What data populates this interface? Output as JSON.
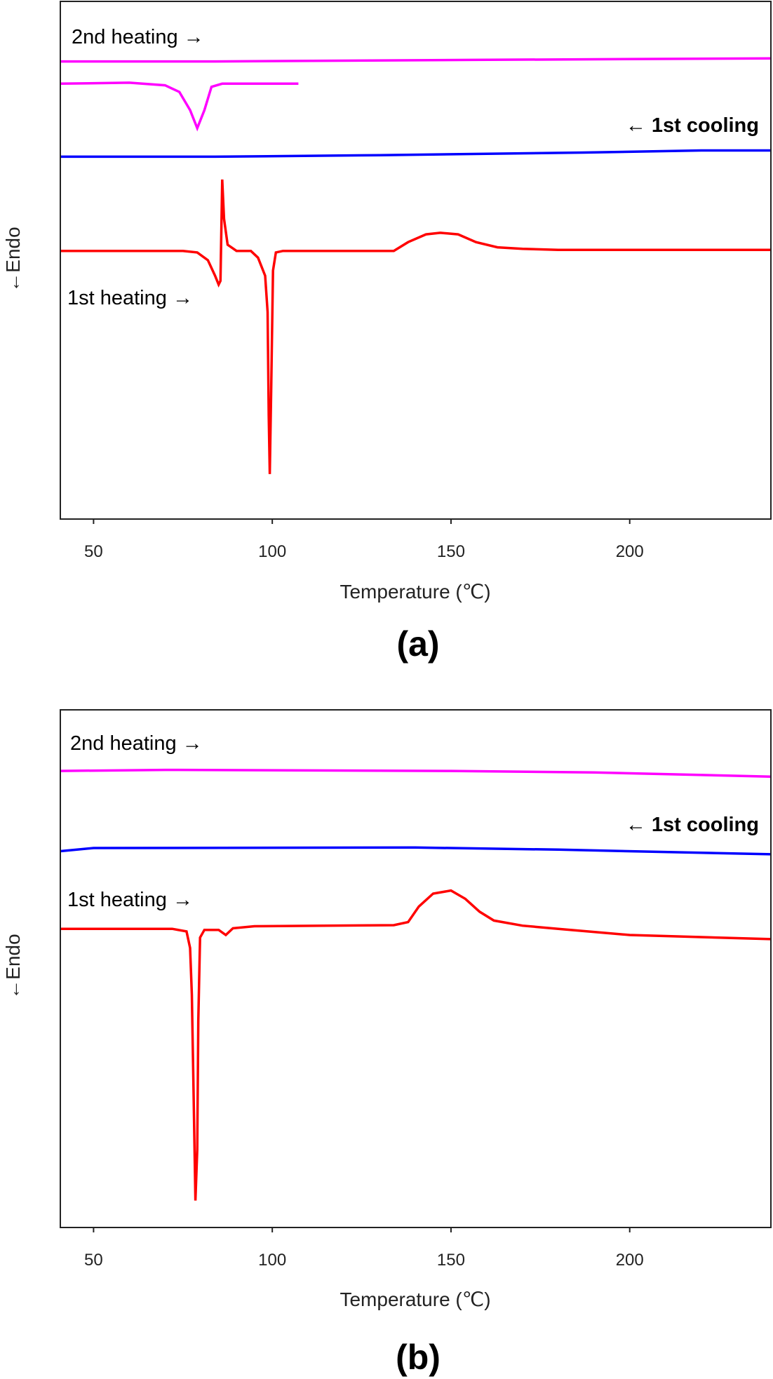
{
  "chart_data": [
    {
      "type": "line",
      "panel_label": "(a)",
      "xlabel": "Temperature (℃)",
      "ylabel": "←Endo",
      "xlim": [
        40.7,
        239.5
      ],
      "ylim": [
        0,
        100
      ],
      "y_units": "arbitrary (no tick labels)",
      "xticks": [
        50,
        100,
        150,
        200
      ],
      "grid": false,
      "annotations": [
        "2nd heating →",
        "← 1st cooling",
        "1st heating →"
      ],
      "series": [
        {
          "name": "2nd heating",
          "color": "#ff00ff",
          "points": [
            [
              40.7,
              88.4
            ],
            [
              84,
              88.4
            ],
            [
              156,
              88.7
            ],
            [
              239.5,
              89.0
            ]
          ]
        },
        {
          "color": "#ff00ff",
          "points": [
            [
              40.7,
              84.1
            ],
            [
              60,
              84.3
            ],
            [
              70,
              83.8
            ],
            [
              74,
              82.5
            ],
            [
              77,
              79
            ],
            [
              79,
              75.5
            ],
            [
              81,
              79
            ],
            [
              83,
              83.5
            ],
            [
              86,
              84.1
            ],
            [
              107.3,
              84.1
            ]
          ]
        },
        {
          "name": "1st cooling",
          "color": "#0000ff",
          "points": [
            [
              40.7,
              70
            ],
            [
              84,
              70
            ],
            [
              130,
              70.3
            ],
            [
              187,
              70.8
            ],
            [
              220,
              71.2
            ],
            [
              239.5,
              71.2
            ]
          ]
        },
        {
          "name": "1st heating",
          "color": "#ff0000",
          "points": [
            [
              40.7,
              51.8
            ],
            [
              75,
              51.8
            ],
            [
              79,
              51.5
            ],
            [
              82,
              50
            ],
            [
              84,
              47
            ],
            [
              85,
              45.3
            ],
            [
              85.5,
              46
            ],
            [
              86,
              65.6
            ],
            [
              86.5,
              58
            ],
            [
              87.5,
              53
            ],
            [
              90,
              51.8
            ],
            [
              94,
              51.8
            ],
            [
              96,
              50.5
            ],
            [
              98,
              47
            ],
            [
              98.7,
              40
            ],
            [
              99,
              20
            ],
            [
              99.3,
              8.7
            ],
            [
              99.7,
              25
            ],
            [
              100.2,
              48
            ],
            [
              101,
              51.5
            ],
            [
              103,
              51.8
            ],
            [
              134,
              51.8
            ],
            [
              138,
              53.5
            ],
            [
              143,
              55
            ],
            [
              147,
              55.3
            ],
            [
              152,
              55
            ],
            [
              157,
              53.5
            ],
            [
              163,
              52.5
            ],
            [
              170,
              52.2
            ],
            [
              180,
              52
            ],
            [
              239.5,
              52
            ]
          ]
        }
      ]
    },
    {
      "type": "line",
      "panel_label": "(b)",
      "xlabel": "Temperature (℃)",
      "ylabel": "←Endo",
      "xlim": [
        40.7,
        239.5
      ],
      "ylim": [
        0,
        100
      ],
      "y_units": "arbitrary (no tick labels)",
      "xticks": [
        50,
        100,
        150,
        200
      ],
      "grid": false,
      "annotations": [
        "2nd heating →",
        "← 1st cooling",
        "1st heating →"
      ],
      "series": [
        {
          "name": "2nd heating",
          "color": "#ff00ff",
          "points": [
            [
              40.7,
              88.2
            ],
            [
              70,
              88.4
            ],
            [
              150,
              88.2
            ],
            [
              190,
              87.9
            ],
            [
              239.5,
              87.1
            ]
          ]
        },
        {
          "name": "1st cooling",
          "color": "#0000ff",
          "points": [
            [
              40.7,
              72.7
            ],
            [
              50,
              73.3
            ],
            [
              140,
              73.4
            ],
            [
              180,
              73.0
            ],
            [
              239.5,
              72.1
            ]
          ]
        },
        {
          "name": "1st heating",
          "color": "#ff0000",
          "points": [
            [
              40.7,
              57.7
            ],
            [
              72,
              57.7
            ],
            [
              76,
              57.2
            ],
            [
              77,
              54
            ],
            [
              77.5,
              45
            ],
            [
              78,
              25
            ],
            [
              78.5,
              5.2
            ],
            [
              79,
              15
            ],
            [
              79.3,
              40
            ],
            [
              79.8,
              56
            ],
            [
              81,
              57.5
            ],
            [
              85,
              57.5
            ],
            [
              87,
              56.5
            ],
            [
              89,
              57.8
            ],
            [
              95,
              58.2
            ],
            [
              134,
              58.4
            ],
            [
              138,
              59
            ],
            [
              141,
              62
            ],
            [
              145,
              64.5
            ],
            [
              150,
              65.1
            ],
            [
              154,
              63.5
            ],
            [
              158,
              61
            ],
            [
              162,
              59.3
            ],
            [
              170,
              58.3
            ],
            [
              180,
              57.7
            ],
            [
              200,
              56.5
            ],
            [
              239.5,
              55.7
            ]
          ]
        }
      ]
    }
  ]
}
